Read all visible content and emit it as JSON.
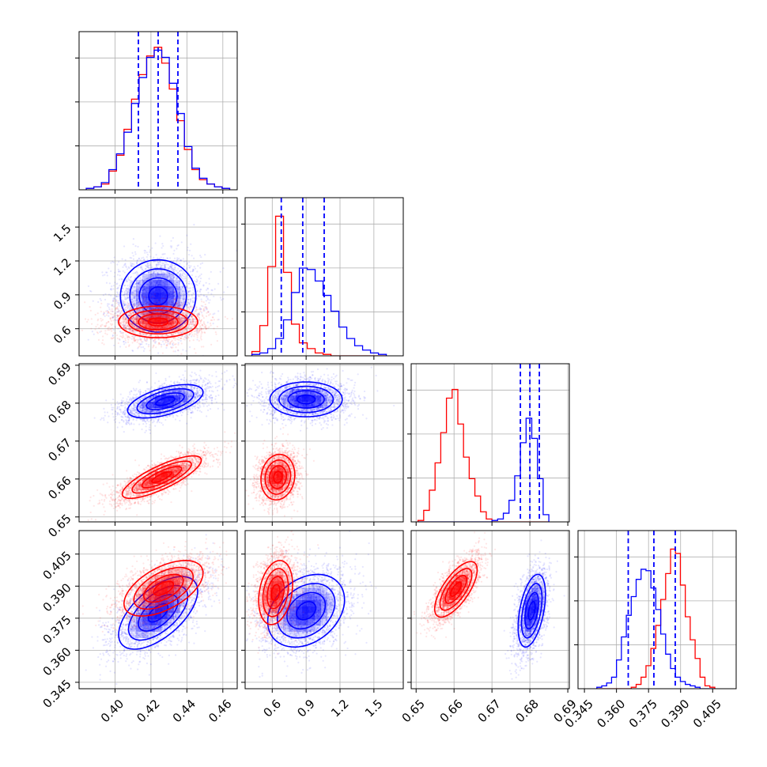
{
  "chart_data": {
    "type": "corner",
    "title": "",
    "grid": true,
    "series_colors": {
      "blue": "#0000ff",
      "red": "#ff0000"
    },
    "parameters": [
      {
        "id": "p1",
        "ticks": [
          "0.40",
          "0.42",
          "0.44",
          "0.46"
        ],
        "range": [
          0.38,
          0.468
        ]
      },
      {
        "id": "p2",
        "ticks": [
          "0.6",
          "0.9",
          "1.2",
          "1.5"
        ],
        "range": [
          0.36,
          1.76
        ]
      },
      {
        "id": "p3",
        "ticks": [
          "0.65",
          "0.66",
          "0.67",
          "0.68",
          "0.69"
        ],
        "range": [
          0.6487,
          0.6904
        ]
      },
      {
        "id": "p4",
        "ticks": [
          "0.345",
          "0.360",
          "0.375",
          "0.390",
          "0.405"
        ],
        "range": [
          0.342,
          0.416
        ]
      }
    ],
    "quantiles_blue": {
      "p1": [
        0.413,
        0.424,
        0.435
      ],
      "p2": [
        0.68,
        0.87,
        1.06
      ],
      "p3": [
        0.6775,
        0.68,
        0.6825
      ],
      "p4": [
        0.3655,
        0.3775,
        0.3875
      ]
    },
    "histograms": [
      {
        "param": "p1",
        "edges": [
          0.384,
          0.3882,
          0.3924,
          0.3966,
          0.4008,
          0.405,
          0.4092,
          0.4134,
          0.4176,
          0.4218,
          0.426,
          0.4302,
          0.4344,
          0.4386,
          0.4428,
          0.447,
          0.4512,
          0.4554,
          0.4596,
          0.4638
        ],
        "blue": [
          0.01,
          0.02,
          0.05,
          0.14,
          0.25,
          0.4,
          0.6,
          0.78,
          0.92,
          0.97,
          0.92,
          0.74,
          0.53,
          0.3,
          0.15,
          0.08,
          0.04,
          0.02,
          0.01
        ],
        "red": [
          0.01,
          0.02,
          0.04,
          0.13,
          0.24,
          0.42,
          0.63,
          0.8,
          0.93,
          0.99,
          0.88,
          0.7,
          0.48,
          0.28,
          0.14,
          0.07,
          0.04,
          0.02,
          0.01
        ]
      },
      {
        "param": "p2",
        "edges": [
          0.42,
          0.49,
          0.56,
          0.63,
          0.7,
          0.77,
          0.84,
          0.91,
          0.98,
          1.05,
          1.12,
          1.19,
          1.26,
          1.33,
          1.4,
          1.47,
          1.54,
          1.61
        ],
        "blue": [
          0.01,
          0.02,
          0.05,
          0.12,
          0.25,
          0.44,
          0.61,
          0.6,
          0.52,
          0.42,
          0.31,
          0.2,
          0.12,
          0.07,
          0.04,
          0.02,
          0.01
        ],
        "red": [
          0.03,
          0.21,
          0.62,
          0.97,
          0.58,
          0.22,
          0.09,
          0.05,
          0.02,
          0.01,
          0,
          0,
          0,
          0,
          0,
          0,
          0
        ]
      },
      {
        "param": "p3",
        "edges": [
          0.6505,
          0.652,
          0.6535,
          0.655,
          0.6565,
          0.658,
          0.6595,
          0.661,
          0.6625,
          0.664,
          0.6655,
          0.667,
          0.6685,
          0.67,
          0.6715,
          0.673,
          0.6745,
          0.676,
          0.6775,
          0.679,
          0.6805,
          0.682,
          0.6835,
          0.685
        ],
        "blue": [
          0,
          0,
          0,
          0,
          0,
          0,
          0,
          0,
          0,
          0,
          0,
          0,
          0,
          0.01,
          0.02,
          0.06,
          0.15,
          0.32,
          0.55,
          0.72,
          0.58,
          0.3,
          0.05
        ],
        "red": [
          0.01,
          0.08,
          0.22,
          0.41,
          0.62,
          0.86,
          0.92,
          0.68,
          0.45,
          0.3,
          0.18,
          0.07,
          0.02,
          0,
          0,
          0,
          0,
          0,
          0,
          0,
          0,
          0,
          0
        ]
      },
      {
        "param": "p4",
        "edges": [
          0.3508,
          0.3531,
          0.3554,
          0.3577,
          0.36,
          0.3623,
          0.3646,
          0.3669,
          0.3692,
          0.3715,
          0.3738,
          0.3761,
          0.3784,
          0.3807,
          0.383,
          0.3853,
          0.3876,
          0.3899,
          0.3922,
          0.3945,
          0.3968,
          0.3991,
          0.4014,
          0.4037,
          0.406
        ],
        "blue": [
          0.01,
          0.02,
          0.04,
          0.08,
          0.2,
          0.36,
          0.51,
          0.64,
          0.76,
          0.83,
          0.82,
          0.7,
          0.55,
          0.38,
          0.24,
          0.14,
          0.08,
          0.05,
          0.03,
          0.02,
          0.01,
          0,
          0,
          0
        ],
        "red": [
          0,
          0,
          0,
          0,
          0,
          0,
          0,
          0.01,
          0.03,
          0.08,
          0.16,
          0.28,
          0.44,
          0.62,
          0.8,
          0.97,
          0.94,
          0.72,
          0.5,
          0.34,
          0.21,
          0.08,
          0.02,
          0.01
        ]
      }
    ],
    "pairs": [
      {
        "x": "p1",
        "y": "p2",
        "blue": {
          "mx": 0.424,
          "my": 0.89,
          "sx": 0.0105,
          "sy": 0.16,
          "rho": 0.0,
          "n": 2500
        },
        "red": {
          "mx": 0.424,
          "my": 0.66,
          "sx": 0.011,
          "sy": 0.07,
          "rho": 0.0,
          "n": 2500
        }
      },
      {
        "x": "p1",
        "y": "p3",
        "blue": {
          "mx": 0.428,
          "my": 0.6805,
          "sx": 0.0105,
          "sy": 0.0022,
          "rho": 0.55,
          "n": 2500
        },
        "red": {
          "mx": 0.426,
          "my": 0.6605,
          "sx": 0.011,
          "sy": 0.0028,
          "rho": 0.8,
          "n": 2500
        }
      },
      {
        "x": "p1",
        "y": "p4",
        "blue": {
          "mx": 0.424,
          "my": 0.3775,
          "sx": 0.011,
          "sy": 0.0085,
          "rho": 0.6,
          "n": 2500
        },
        "red": {
          "mx": 0.427,
          "my": 0.389,
          "sx": 0.011,
          "sy": 0.0065,
          "rho": 0.55,
          "n": 2500
        }
      },
      {
        "x": "p2",
        "y": "p3",
        "blue": {
          "mx": 0.9,
          "my": 0.681,
          "sx": 0.16,
          "sy": 0.0023,
          "rho": 0.0,
          "n": 2500
        },
        "red": {
          "mx": 0.65,
          "my": 0.6605,
          "sx": 0.075,
          "sy": 0.003,
          "rho": 0.1,
          "n": 2500
        }
      },
      {
        "x": "p2",
        "y": "p4",
        "blue": {
          "mx": 0.9,
          "my": 0.3785,
          "sx": 0.17,
          "sy": 0.0085,
          "rho": 0.3,
          "n": 2500
        },
        "red": {
          "mx": 0.63,
          "my": 0.387,
          "sx": 0.075,
          "sy": 0.0075,
          "rho": 0.25,
          "n": 2500
        }
      },
      {
        "x": "p3",
        "y": "p4",
        "blue": {
          "mx": 0.6805,
          "my": 0.3785,
          "sx": 0.0018,
          "sy": 0.0085,
          "rho": 0.45,
          "n": 2500
        },
        "red": {
          "mx": 0.6605,
          "my": 0.3885,
          "sx": 0.0028,
          "sy": 0.0065,
          "rho": 0.7,
          "n": 2500
        }
      }
    ]
  }
}
